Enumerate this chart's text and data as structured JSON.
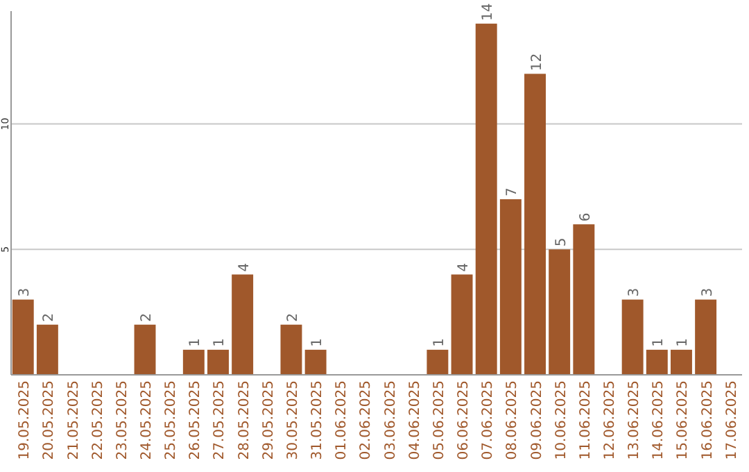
{
  "chart_data": {
    "type": "bar",
    "categories": [
      "19.05.2025",
      "20.05.2025",
      "21.05.2025",
      "22.05.2025",
      "23.05.2025",
      "24.05.2025",
      "25.05.2025",
      "26.05.2025",
      "27.05.2025",
      "28.05.2025",
      "29.05.2025",
      "30.05.2025",
      "31.05.2025",
      "01.06.2025",
      "02.06.2025",
      "03.06.2025",
      "04.06.2025",
      "05.06.2025",
      "06.06.2025",
      "07.06.2025",
      "08.06.2025",
      "09.06.2025",
      "10.06.2025",
      "11.06.2025",
      "12.06.2025",
      "13.06.2025",
      "14.06.2025",
      "15.06.2025",
      "16.06.2025",
      "17.06.2025"
    ],
    "values": [
      3,
      2,
      0,
      0,
      0,
      2,
      0,
      1,
      1,
      4,
      0,
      2,
      1,
      0,
      0,
      0,
      0,
      1,
      4,
      14,
      7,
      12,
      5,
      6,
      0,
      3,
      1,
      1,
      3,
      0
    ],
    "value_labels": [
      "3",
      "2",
      null,
      null,
      null,
      "2",
      null,
      "1",
      "1",
      "4",
      null,
      "2",
      "1",
      null,
      null,
      null,
      null,
      "1",
      "4",
      "14",
      "7",
      "12",
      "5",
      "6",
      null,
      "3",
      "1",
      "1",
      "3",
      null
    ],
    "color": "#a0582b",
    "ylim": [
      0,
      14.5
    ],
    "yticks": [
      5,
      10
    ],
    "grid": "y"
  }
}
